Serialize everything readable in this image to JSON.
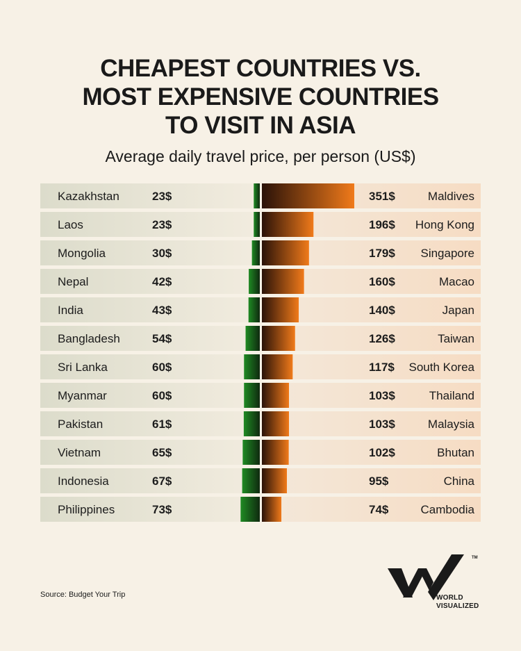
{
  "title_lines": [
    "CHEAPEST COUNTRIES VS.",
    "MOST EXPENSIVE COUNTRIES",
    "TO VISIT IN ASIA"
  ],
  "subtitle": "Average daily travel price, per person (US$)",
  "source": "Source: Budget Your Trip",
  "brand": {
    "line1": "WORLD",
    "line2": "VISUALIZED",
    "tm": "TM"
  },
  "colors": {
    "green_dark": "#0f2a0f",
    "green": "#1f8a23",
    "orange_dark": "#2a1208",
    "orange": "#f07a1a",
    "row_left": "#dcdccb",
    "row_right": "#f6dcc3"
  },
  "chart_data": {
    "type": "bar",
    "value_suffix": "$",
    "cheapest": [
      {
        "country": "Kazakhstan",
        "value": 23
      },
      {
        "country": "Laos",
        "value": 23
      },
      {
        "country": "Mongolia",
        "value": 30
      },
      {
        "country": "Nepal",
        "value": 42
      },
      {
        "country": "India",
        "value": 43
      },
      {
        "country": "Bangladesh",
        "value": 54
      },
      {
        "country": "Sri Lanka",
        "value": 60
      },
      {
        "country": "Myanmar",
        "value": 60
      },
      {
        "country": "Pakistan",
        "value": 61
      },
      {
        "country": "Vietnam",
        "value": 65
      },
      {
        "country": "Indonesia",
        "value": 67
      },
      {
        "country": "Philippines",
        "value": 73
      }
    ],
    "most_expensive": [
      {
        "country": "Maldives",
        "value": 351
      },
      {
        "country": "Hong Kong",
        "value": 196
      },
      {
        "country": "Singapore",
        "value": 179
      },
      {
        "country": "Macao",
        "value": 160
      },
      {
        "country": "Japan",
        "value": 140
      },
      {
        "country": "Taiwan",
        "value": 126
      },
      {
        "country": "South Korea",
        "value": 117
      },
      {
        "country": "Thailand",
        "value": 103
      },
      {
        "country": "Malaysia",
        "value": 103
      },
      {
        "country": "Bhutan",
        "value": 102
      },
      {
        "country": "China",
        "value": 95
      },
      {
        "country": "Cambodia",
        "value": 74
      }
    ]
  }
}
